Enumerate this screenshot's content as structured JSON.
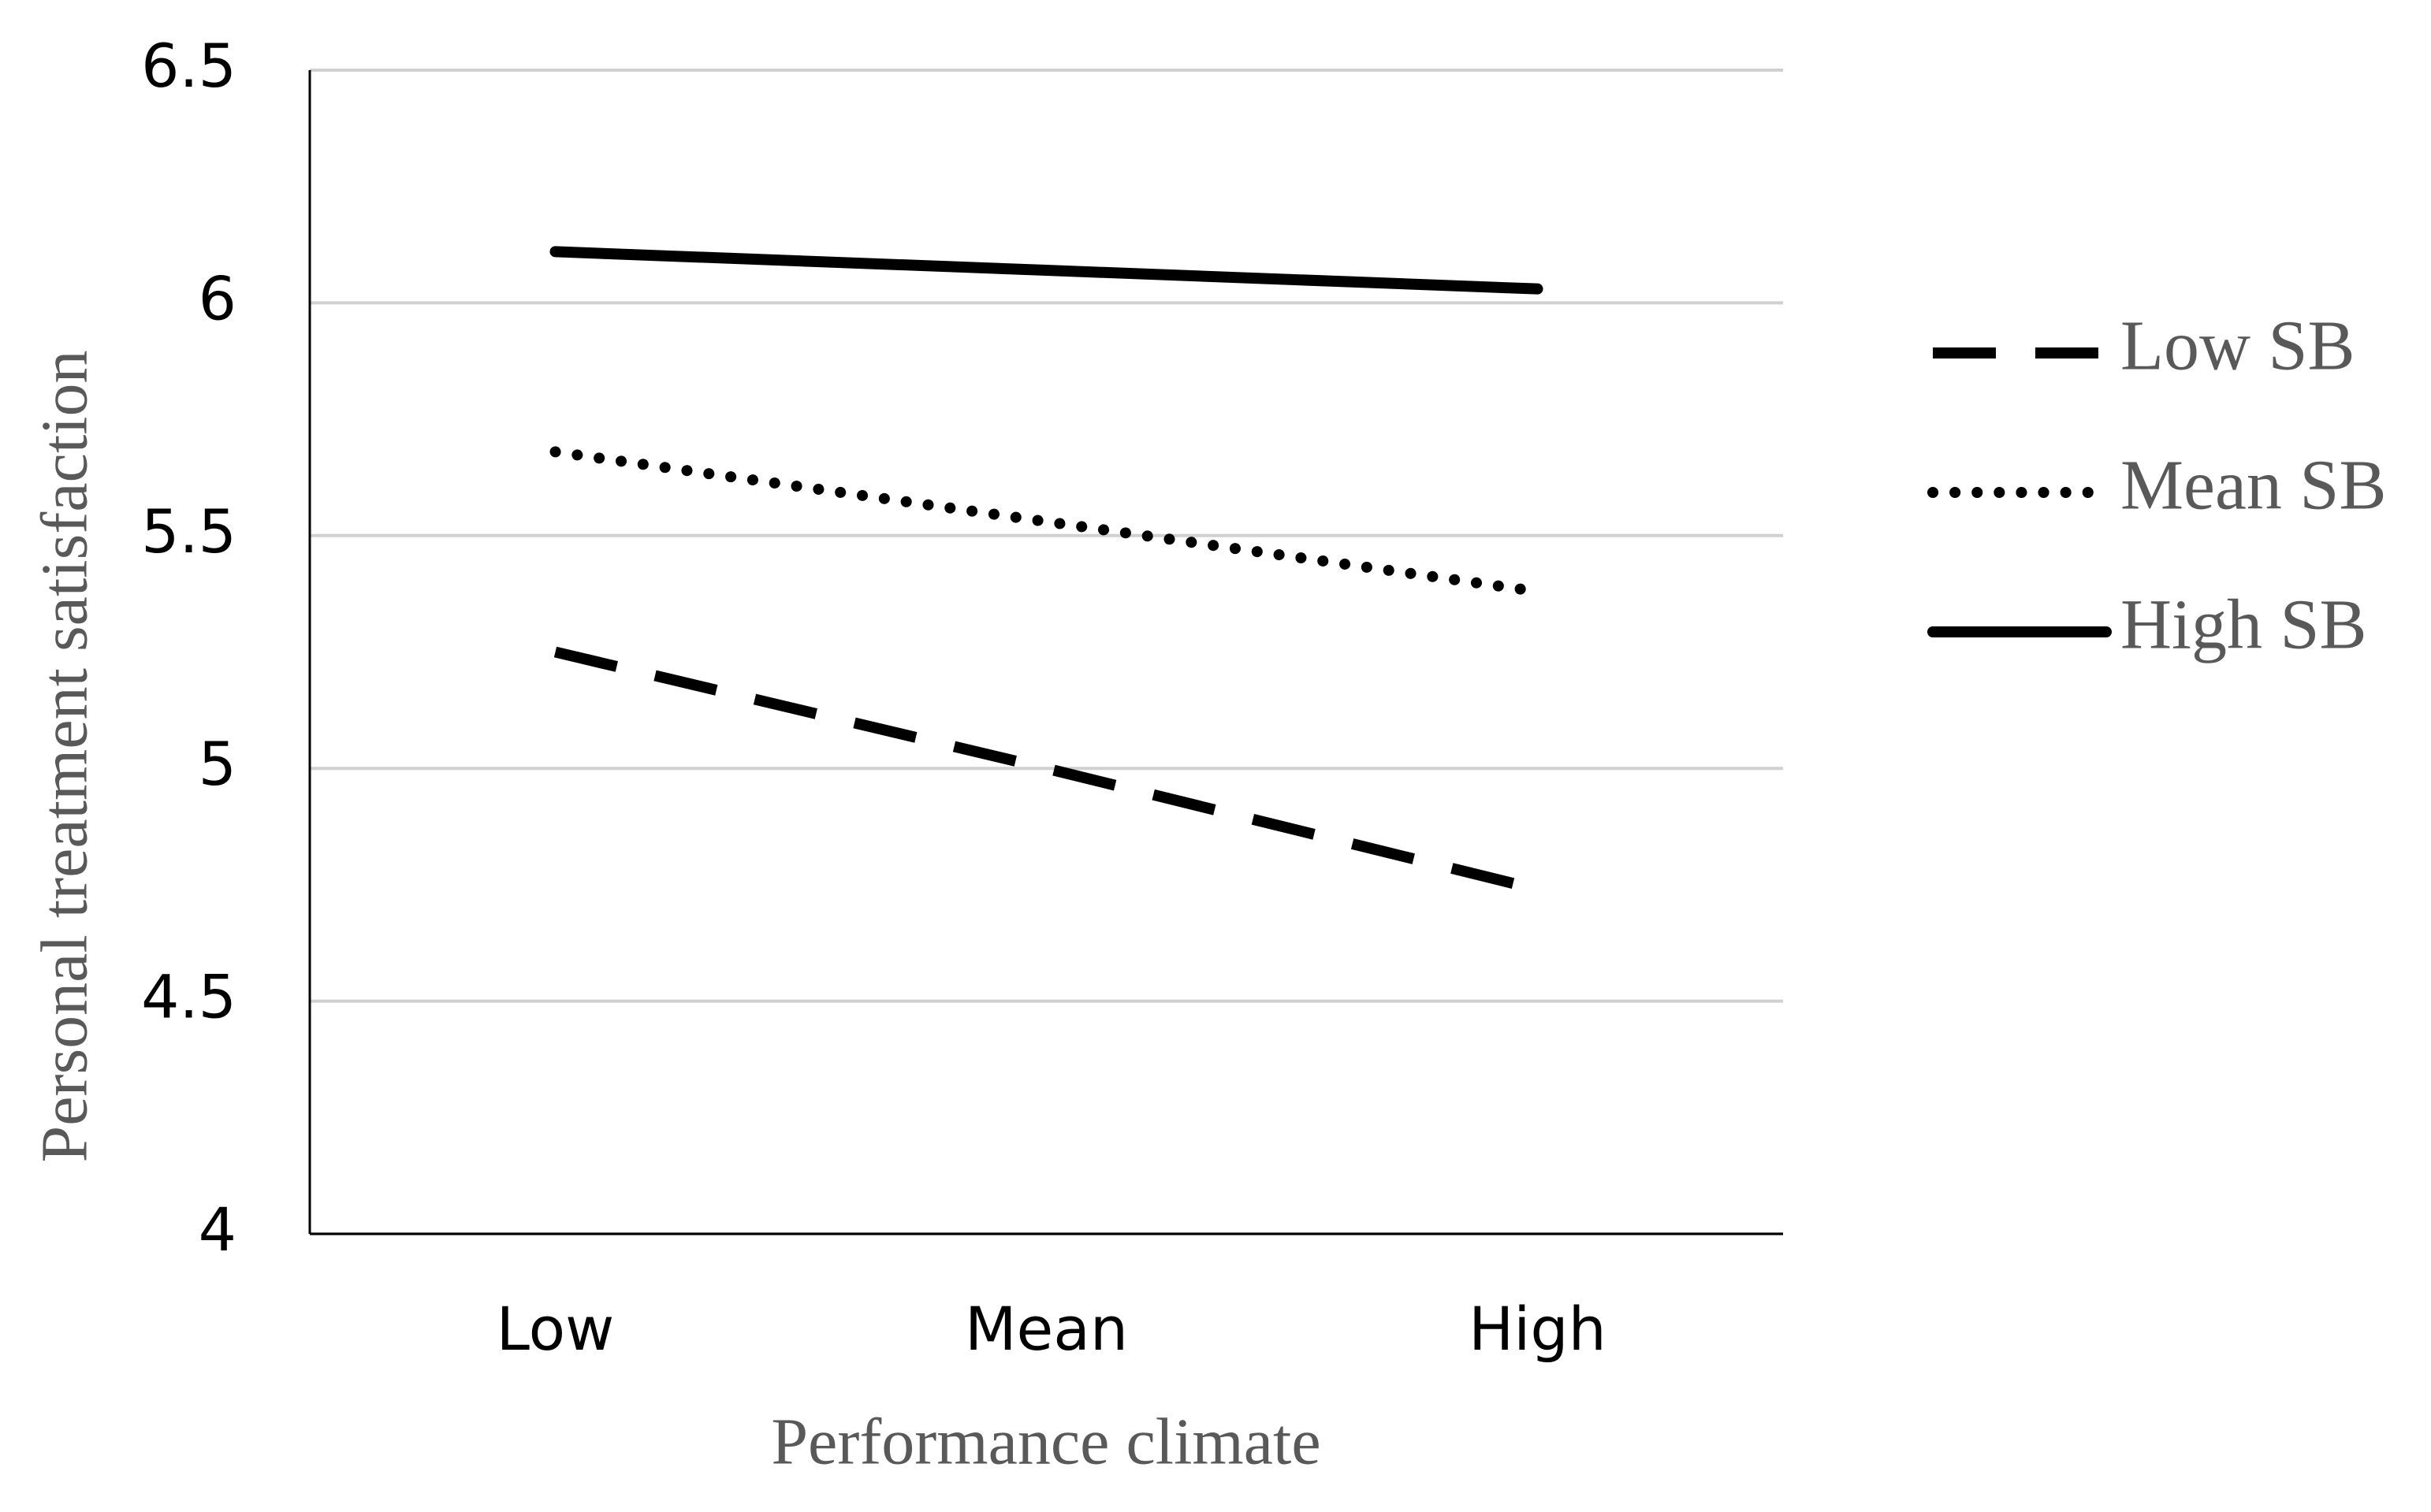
{
  "chart_data": {
    "type": "line",
    "x_label": "Performance climate",
    "y_label": "Personal treatment satisfaction",
    "categories": [
      "Low",
      "Mean",
      "High"
    ],
    "series": [
      {
        "name": "Low SB",
        "color": "#000000",
        "line_style": "dashed",
        "values": [
          5.25,
          5.0,
          4.74
        ]
      },
      {
        "name": "Mean SB",
        "color": "#000000",
        "line_style": "dotted",
        "values": [
          5.68,
          5.53,
          5.38
        ]
      },
      {
        "name": "High SB",
        "color": "#000000",
        "line_style": "solid",
        "values": [
          6.11,
          6.07,
          6.03
        ]
      }
    ],
    "ylim": [
      4,
      6.5
    ],
    "yticks": [
      4,
      4.5,
      5,
      5.5,
      6,
      6.5
    ],
    "grid": true,
    "legend": "right"
  }
}
